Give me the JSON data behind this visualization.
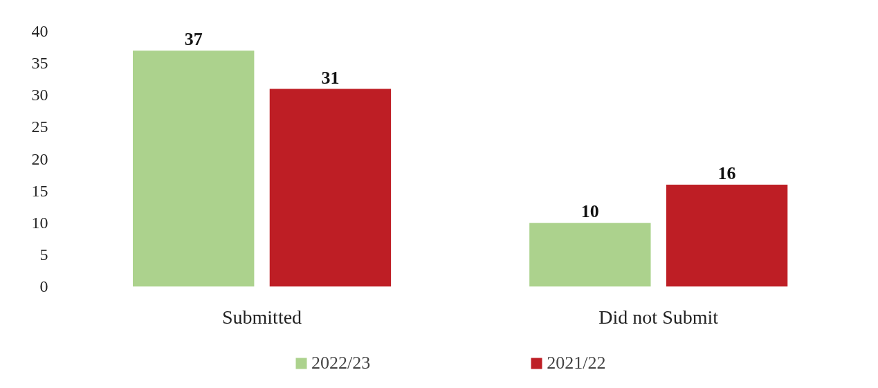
{
  "chart_data": {
    "type": "bar",
    "categories": [
      "Submitted",
      "Did not Submit"
    ],
    "series": [
      {
        "name": "2022/23",
        "color": "#acd28d",
        "values": [
          37,
          10
        ]
      },
      {
        "name": "2021/22",
        "color": "#be1e25",
        "values": [
          31,
          16
        ]
      }
    ],
    "ylim": [
      0,
      40
    ],
    "yticks": [
      0,
      5,
      10,
      15,
      20,
      25,
      30,
      35,
      40
    ],
    "grid": false,
    "legend": "bottom",
    "data_labels": true
  }
}
